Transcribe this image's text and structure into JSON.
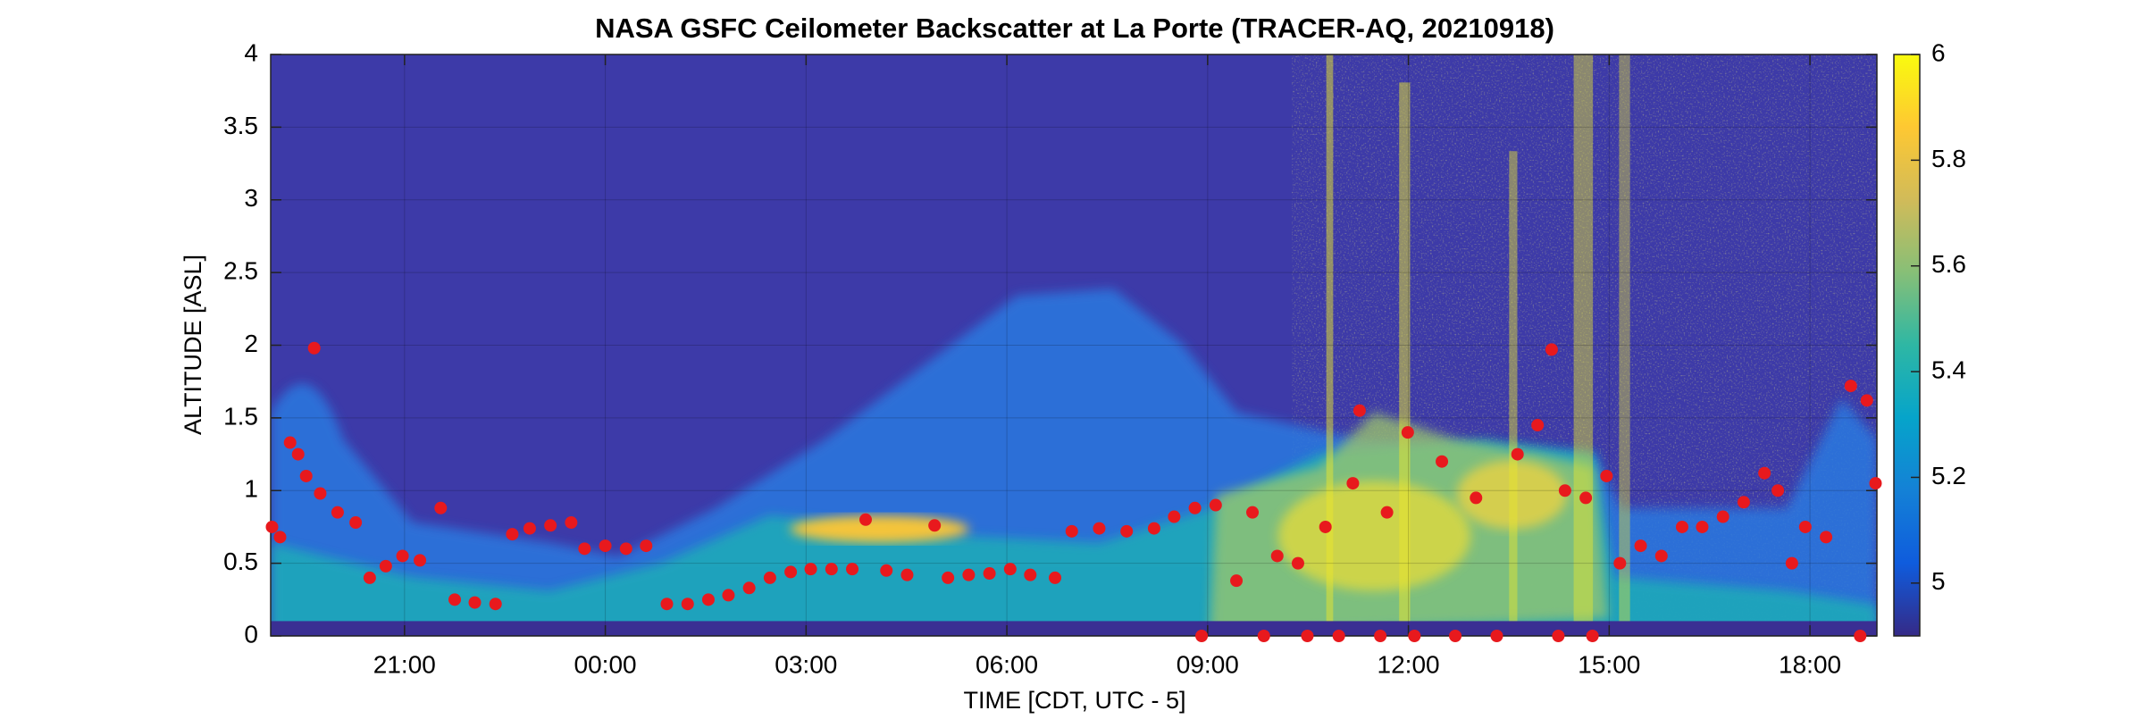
{
  "chart_data": {
    "type": "scatter",
    "title": "NASA GSFC Ceilometer Backscatter at La Porte (TRACER-AQ, 20210918)",
    "x_label": "TIME [CDT, UTC - 5]",
    "y_label": "ALTITUDE [ASL]",
    "color": "#e8191d",
    "grid": true,
    "xlim": [
      -5.0,
      19.0
    ],
    "xticks": [
      {
        "value": -3,
        "label": "21:00"
      },
      {
        "value": 0,
        "label": "00:00"
      },
      {
        "value": 3,
        "label": "03:00"
      },
      {
        "value": 6,
        "label": "06:00"
      },
      {
        "value": 9,
        "label": "09:00"
      },
      {
        "value": 12,
        "label": "12:00"
      },
      {
        "value": 15,
        "label": "15:00"
      },
      {
        "value": 18,
        "label": "18:00"
      }
    ],
    "ylim": [
      0,
      4
    ],
    "yticks": [
      0,
      0.5,
      1,
      1.5,
      2,
      2.5,
      3,
      3.5,
      4
    ],
    "colorbar": {
      "lim": [
        4.9,
        6
      ],
      "ticks": [
        5,
        5.2,
        5.4,
        5.6,
        5.8,
        6
      ],
      "colors": [
        "#352a87",
        "#0f5cdd",
        "#1481d6",
        "#06a4ca",
        "#2eb7a4",
        "#87bf77",
        "#d1bb59",
        "#fec832",
        "#f9fb0e"
      ]
    },
    "x": [
      -4.98,
      -4.86,
      -4.71,
      -4.59,
      -4.47,
      -4.35,
      -4.26,
      -4.0,
      -3.73,
      -3.52,
      -3.28,
      -3.03,
      -2.77,
      -2.46,
      -2.25,
      -1.95,
      -1.64,
      -1.39,
      -1.13,
      -0.82,
      -0.51,
      -0.31,
      0,
      0.31,
      0.61,
      0.92,
      1.23,
      1.54,
      1.84,
      2.15,
      2.46,
      2.77,
      3.07,
      3.38,
      3.69,
      3.89,
      4.2,
      4.51,
      4.92,
      5.12,
      5.43,
      5.74,
      6.05,
      6.35,
      6.72,
      6.97,
      7.38,
      7.79,
      8.2,
      8.5,
      8.81,
      9.12,
      8.91,
      9.43,
      9.67,
      9.84,
      10.04,
      10.35,
      10.49,
      10.76,
      10.96,
      11.17,
      11.27,
      11.58,
      11.68,
      11.99,
      12.09,
      12.5,
      12.7,
      13.01,
      13.32,
      13.63,
      13.93,
      14.14,
      14.24,
      14.34,
      14.65,
      14.75,
      14.96,
      15.16,
      15.47,
      15.78,
      16.09,
      16.39,
      16.7,
      17.01,
      17.32,
      17.52,
      17.73,
      17.93,
      18.24,
      18.61,
      18.75,
      18.85,
      18.98
    ],
    "values": [
      0.75,
      0.68,
      1.33,
      1.25,
      1.1,
      1.98,
      0.98,
      0.85,
      0.78,
      0.4,
      0.48,
      0.55,
      0.52,
      0.88,
      0.25,
      0.23,
      0.22,
      0.7,
      0.74,
      0.76,
      0.78,
      0.6,
      0.62,
      0.6,
      0.62,
      0.22,
      0.22,
      0.25,
      0.28,
      0.33,
      0.4,
      0.44,
      0.46,
      0.46,
      0.46,
      0.8,
      0.45,
      0.42,
      0.76,
      0.4,
      0.42,
      0.43,
      0.46,
      0.42,
      0.4,
      0.72,
      0.74,
      0.72,
      0.74,
      0.82,
      0.88,
      0.9,
      0,
      0.38,
      0.85,
      0,
      0.55,
      0.5,
      0,
      0.75,
      0,
      1.05,
      1.55,
      0,
      0.85,
      1.4,
      0,
      1.2,
      0,
      0.95,
      0,
      1.25,
      1.45,
      1.97,
      0,
      1.0,
      0.95,
      0,
      1.1,
      0.5,
      0.62,
      0.55,
      0.75,
      0.75,
      0.82,
      0.92,
      1.12,
      1.0,
      0.5,
      0.75,
      0.68,
      1.72,
      0,
      1.62,
      1.05
    ]
  }
}
